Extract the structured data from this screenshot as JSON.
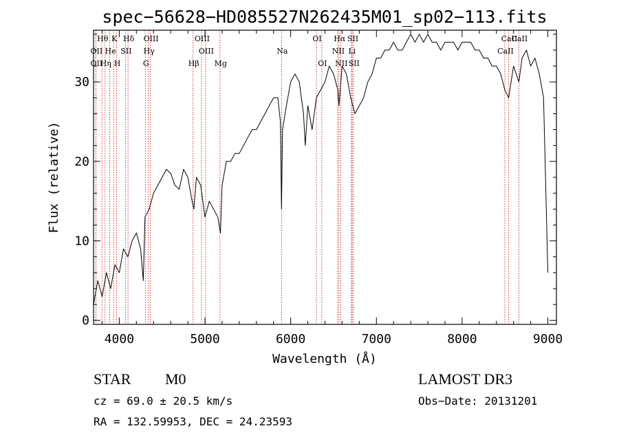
{
  "chart_data": {
    "type": "line",
    "title": "spec−56628−HD085527N262435M01_sp02−113.fits",
    "xlabel": "Wavelength (Å)",
    "ylabel": "Flux (relative)",
    "xlim": [
      3700,
      9100
    ],
    "ylim": [
      -0.5,
      36.5
    ],
    "x_ticks": [
      4000,
      5000,
      6000,
      7000,
      8000,
      9000
    ],
    "x_tick_labels": [
      "4000",
      "5000",
      "6000",
      "7000",
      "8000",
      "9000"
    ],
    "y_ticks": [
      0,
      10,
      20,
      30
    ],
    "y_tick_labels": [
      "0",
      "10",
      "20",
      "30"
    ],
    "grid": false,
    "line_color": "#000000",
    "marker_color": "#cc0000",
    "series": [
      {
        "x": [
          3700,
          3750,
          3800,
          3850,
          3900,
          3950,
          4000,
          4050,
          4100,
          4150,
          4200,
          4250,
          4280,
          4300,
          4350,
          4400,
          4450,
          4500,
          4550,
          4600,
          4650,
          4700,
          4750,
          4800,
          4850,
          4870,
          4900,
          4950,
          5000,
          5050,
          5100,
          5150,
          5180,
          5200,
          5250,
          5300,
          5350,
          5400,
          5450,
          5500,
          5550,
          5600,
          5650,
          5700,
          5750,
          5800,
          5850,
          5880,
          5893,
          5905,
          5950,
          6000,
          6050,
          6100,
          6150,
          6170,
          6200,
          6250,
          6300,
          6350,
          6400,
          6450,
          6500,
          6550,
          6563,
          6600,
          6650,
          6700,
          6750,
          6800,
          6850,
          6900,
          6950,
          7000,
          7050,
          7100,
          7150,
          7200,
          7250,
          7300,
          7350,
          7400,
          7450,
          7500,
          7550,
          7600,
          7650,
          7700,
          7750,
          7800,
          7850,
          7900,
          7950,
          8000,
          8050,
          8100,
          8150,
          8200,
          8250,
          8300,
          8350,
          8400,
          8450,
          8498,
          8542,
          8600,
          8662,
          8700,
          8750,
          8800,
          8850,
          8900,
          8950,
          8980,
          9000
        ],
        "y": [
          2,
          5,
          3,
          6,
          4,
          7,
          6,
          9,
          8,
          10,
          11,
          9,
          5,
          13,
          14,
          16,
          17,
          18,
          19,
          18.5,
          17,
          16.5,
          19,
          18,
          15,
          14,
          18,
          17,
          13,
          15,
          14,
          13,
          11,
          17,
          20,
          20,
          21,
          21,
          22,
          23,
          24,
          24,
          25,
          26,
          27,
          28,
          28,
          25,
          14,
          24,
          27,
          30,
          31,
          30,
          26,
          22,
          27,
          24,
          28,
          29,
          30,
          32,
          31,
          29,
          27,
          32,
          31,
          28,
          26,
          27,
          28,
          30,
          31,
          33,
          33,
          34,
          34,
          35,
          34,
          34,
          35,
          36,
          35,
          36,
          35,
          36,
          35,
          35,
          34,
          35,
          35,
          35,
          34,
          35,
          35,
          35,
          34,
          34,
          33,
          33,
          32,
          32,
          31,
          29,
          28,
          32,
          30,
          33,
          34,
          32,
          33,
          31,
          28,
          15,
          6
        ]
      }
    ],
    "spectral_lines": [
      {
        "label": "Hθ",
        "x": 3798
      },
      {
        "label": "K",
        "x": 3934
      },
      {
        "label": "Hδ",
        "x": 4102
      },
      {
        "label": "OIII",
        "x": 4363
      },
      {
        "label": "OIII",
        "x": 4959
      },
      {
        "label": "OI",
        "x": 6300
      },
      {
        "label": "Hα",
        "x": 6563
      },
      {
        "label": "SII",
        "x": 6717
      },
      {
        "label": "CaII",
        "x": 8542
      },
      {
        "label": "OII",
        "x": 3727
      },
      {
        "label": "He",
        "x": 3889
      },
      {
        "label": "SII",
        "x": 4072
      },
      {
        "label": "Hγ",
        "x": 4340
      },
      {
        "label": "OIII",
        "x": 5007
      },
      {
        "label": "Na",
        "x": 5893
      },
      {
        "label": "NII",
        "x": 6548
      },
      {
        "label": "Li",
        "x": 6708
      },
      {
        "label": "CaII",
        "x": 8498
      },
      {
        "label": "OII",
        "x": 3727
      },
      {
        "label": "Hη",
        "x": 3835
      },
      {
        "label": "H",
        "x": 3969
      },
      {
        "label": "G",
        "x": 4304
      },
      {
        "label": "Hβ",
        "x": 4861
      },
      {
        "label": "Mg",
        "x": 5175
      },
      {
        "label": "OI",
        "x": 6363
      },
      {
        "label": "NII",
        "x": 6583
      },
      {
        "label": "SII",
        "x": 6731
      },
      {
        "label": "CaII",
        "x": 8662
      }
    ]
  },
  "info": {
    "object_class": "STAR",
    "subclass": "M0",
    "survey": "LAMOST DR3",
    "cz": "cz = 69.0 ± 20.5 km/s",
    "obs_date": "Obs−Date: 20131201",
    "radec": "RA = 132.59953, DEC =  24.23593"
  }
}
